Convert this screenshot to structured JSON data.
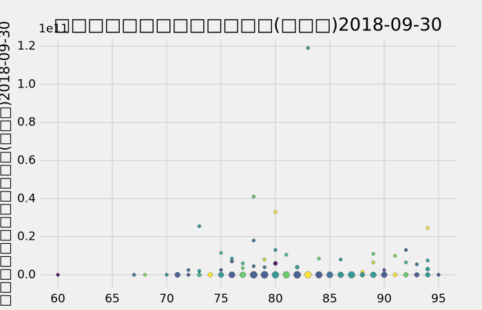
{
  "chart_data": {
    "type": "scatter",
    "title": "□□□□□□□□□□□□□(□□□)2018-09-30",
    "y_label": "□□□□□□□□□□□□(□□□)2018-09-30",
    "y_offset_text": "1e11",
    "xlim": [
      58.35,
      96.65
    ],
    "ylim": [
      -0.069,
      1.236
    ],
    "xticks": [
      60,
      65,
      70,
      75,
      80,
      85,
      90,
      95
    ],
    "yticks": [
      {
        "value": 0,
        "label": "0.0"
      },
      0.2,
      0.4,
      0.6,
      0.8,
      {
        "value": 1,
        "label": "1.0"
      },
      1.2
    ],
    "grid": true,
    "x": [
      60,
      67,
      68,
      70,
      71,
      72,
      72,
      73,
      73,
      73,
      74,
      75,
      75,
      75,
      76,
      76,
      76,
      77,
      77,
      77,
      78,
      78,
      78,
      78,
      79,
      79,
      79,
      80,
      80,
      80,
      80,
      81,
      81,
      82,
      82,
      83,
      83,
      84,
      84,
      85,
      86,
      86,
      87,
      88,
      88,
      89,
      89,
      89,
      90,
      90,
      91,
      91,
      92,
      92,
      92,
      93,
      93,
      94,
      94,
      94,
      94,
      95
    ],
    "values": [
      0,
      0,
      0,
      0,
      0,
      0.025,
      0,
      0.255,
      0.02,
      0,
      0,
      0.115,
      0.025,
      0,
      0.085,
      0.07,
      0,
      0.06,
      0.035,
      0,
      0.41,
      0.18,
      0.045,
      0,
      0.08,
      0.04,
      0,
      0.33,
      0.13,
      0.06,
      0,
      0.105,
      0,
      0.04,
      0,
      1.19,
      0,
      0.085,
      0,
      0,
      0.08,
      0,
      0,
      0.015,
      0,
      0.11,
      0.065,
      0,
      0.025,
      0,
      0.1,
      0,
      0.13,
      0.065,
      0,
      0.055,
      0,
      0.245,
      0.075,
      0.03,
      0,
      0
    ],
    "sizes": [
      2,
      2,
      2,
      2,
      5,
      2,
      2,
      2,
      2,
      3,
      4,
      2,
      2,
      5,
      2,
      2,
      7,
      2,
      2,
      6,
      2,
      2,
      2,
      9,
      2,
      2,
      9,
      2,
      2,
      3,
      8,
      2,
      8,
      3,
      9,
      2,
      8,
      2,
      8,
      7,
      2,
      6,
      8,
      2,
      4,
      2,
      2,
      6,
      2,
      6,
      2,
      3,
      2,
      2,
      4,
      2,
      4,
      2,
      2,
      3,
      4,
      2
    ],
    "colors": [
      "#440154",
      "#31688e",
      "#7ad151",
      "#21918c",
      "#3b528b",
      "#31688e",
      "#3b528b",
      "#21918c",
      "#21918c",
      "#35b779",
      "#fde725",
      "#35b779",
      "#3b528b",
      "#21918c",
      "#21918c",
      "#3b528b",
      "#3b528b",
      "#35b779",
      "#5ec962",
      "#5ec962",
      "#5ec962",
      "#31688e",
      "#31688e",
      "#3b528b",
      "#b5de2b",
      "#31688e",
      "#3b528b",
      "#fde725",
      "#21918c",
      "#440154",
      "#21918c",
      "#35b779",
      "#5ec962",
      "#21918c",
      "#3b528b",
      "#21918c",
      "#fde725",
      "#5ec962",
      "#3b528b",
      "#31688e",
      "#21918c",
      "#21918c",
      "#21918c",
      "#fde725",
      "#21918c",
      "#5ec962",
      "#b5de2b",
      "#21918c",
      "#3b528b",
      "#3b528b",
      "#7ad151",
      "#fde725",
      "#3b528b",
      "#35b779",
      "#5ec962",
      "#31688e",
      "#3b528b",
      "#fde725",
      "#21918c",
      "#21918c",
      "#21918c",
      "#3b528b"
    ]
  }
}
